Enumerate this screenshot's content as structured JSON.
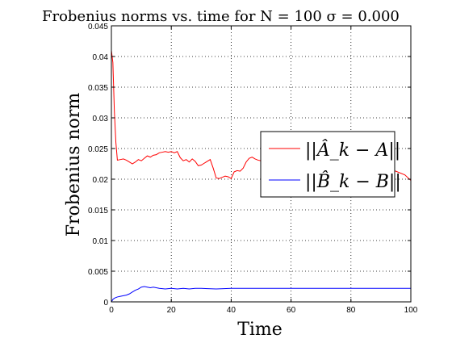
{
  "chart_data": {
    "type": "line",
    "title": "Frobenius norms vs. time for N = 100 σ = 0.000",
    "xlabel": "Time",
    "ylabel": "Frobenius norm",
    "xlim": [
      0,
      100
    ],
    "ylim": [
      0,
      0.045
    ],
    "x_ticks": [
      "0",
      "20",
      "40",
      "60",
      "80",
      "100"
    ],
    "y_ticks": [
      "0",
      "0.005",
      "0.01",
      "0.015",
      "0.02",
      "0.025",
      "0.03",
      "0.035",
      "0.04",
      "0.045"
    ],
    "grid": true,
    "legend_position": "center-right",
    "series": [
      {
        "name": "||Â_k − A||",
        "color": "#ff0000",
        "x": [
          0,
          0.5,
          1,
          1.5,
          2,
          3,
          4,
          5,
          6,
          7,
          8,
          9,
          10,
          11,
          12,
          13,
          14,
          15,
          16,
          17,
          18,
          19,
          20,
          21,
          22,
          23,
          24,
          25,
          26,
          27,
          28,
          29,
          30,
          31,
          32,
          33,
          34,
          35,
          36,
          37,
          38,
          39,
          40,
          41,
          42,
          43,
          44,
          45,
          46,
          47,
          48,
          49,
          50,
          52,
          54,
          56,
          58,
          60,
          65,
          70,
          75,
          80,
          85,
          90,
          95,
          98,
          100
        ],
        "y": [
          0.041,
          0.039,
          0.031,
          0.026,
          0.0231,
          0.0232,
          0.0233,
          0.0231,
          0.0228,
          0.0225,
          0.0228,
          0.0232,
          0.023,
          0.0234,
          0.0238,
          0.0236,
          0.0239,
          0.024,
          0.0243,
          0.0244,
          0.0245,
          0.0244,
          0.0245,
          0.0243,
          0.0245,
          0.0235,
          0.023,
          0.0232,
          0.0228,
          0.0233,
          0.0229,
          0.0222,
          0.0223,
          0.0226,
          0.0229,
          0.0232,
          0.0218,
          0.0202,
          0.0201,
          0.0203,
          0.0205,
          0.0204,
          0.0201,
          0.0212,
          0.0214,
          0.0213,
          0.0218,
          0.0228,
          0.0234,
          0.0236,
          0.0233,
          0.0231,
          0.023,
          0.0229,
          0.0227,
          0.0229,
          0.0228,
          0.0226,
          0.0225,
          0.0224,
          0.0222,
          0.0221,
          0.022,
          0.0219,
          0.0213,
          0.0207,
          0.0198
        ]
      },
      {
        "name": "||B̂_k − B||",
        "color": "#0000ff",
        "x": [
          0,
          0.5,
          1,
          2,
          3,
          4,
          5,
          6,
          7,
          8,
          9,
          10,
          11,
          12,
          13,
          14,
          15,
          16,
          18,
          20,
          22,
          24,
          26,
          28,
          30,
          35,
          40,
          45,
          50,
          60,
          70,
          80,
          90,
          100
        ],
        "y": [
          0.0,
          0.0004,
          0.0006,
          0.0008,
          0.0009,
          0.001,
          0.0011,
          0.0013,
          0.0016,
          0.0019,
          0.0021,
          0.0024,
          0.0025,
          0.0024,
          0.0023,
          0.0024,
          0.0023,
          0.0022,
          0.0021,
          0.0022,
          0.0021,
          0.0022,
          0.0021,
          0.0022,
          0.0022,
          0.0021,
          0.0022,
          0.0022,
          0.0022,
          0.0022,
          0.0022,
          0.0022,
          0.0022,
          0.0022
        ]
      }
    ]
  }
}
